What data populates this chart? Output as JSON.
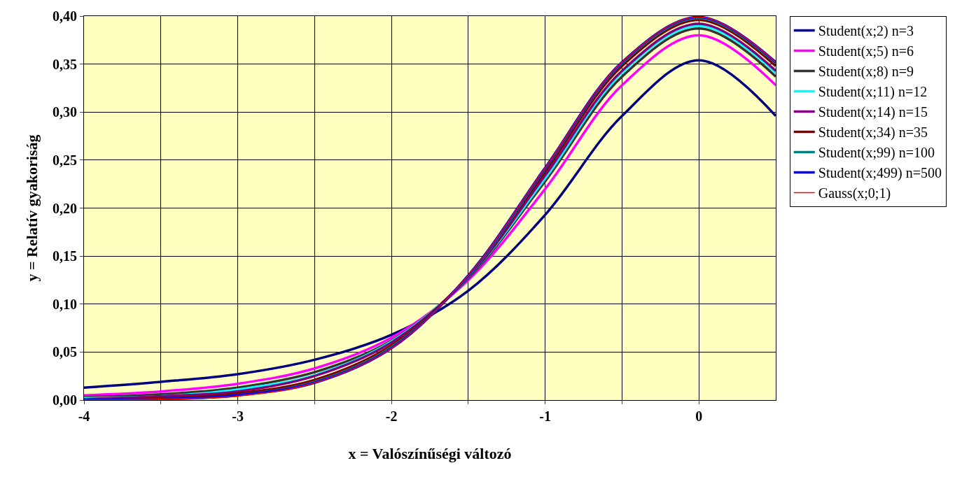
{
  "chart_data": {
    "type": "line",
    "xlabel": "x = Valószínűségi változó",
    "ylabel": "y = Relatív gyakoriság",
    "x": [
      -4,
      -3.5,
      -3,
      -2.5,
      -2,
      -1.5,
      -1,
      -0.5,
      0,
      0.5
    ],
    "series": [
      {
        "name": "Student(x;2) n=3",
        "color": "#000080",
        "values": [
          0.013,
          0.019,
          0.027,
          0.042,
          0.068,
          0.114,
          0.193,
          0.296,
          0.354,
          0.296
        ]
      },
      {
        "name": "Student(x;5) n=6",
        "color": "#ff00ff",
        "values": [
          0.005,
          0.009,
          0.017,
          0.033,
          0.065,
          0.125,
          0.22,
          0.328,
          0.38,
          0.328
        ]
      },
      {
        "name": "Student(x;8) n=9",
        "color": "#333333",
        "values": [
          0.003,
          0.006,
          0.013,
          0.029,
          0.062,
          0.127,
          0.228,
          0.337,
          0.387,
          0.337
        ]
      },
      {
        "name": "Student(x;11) n=12",
        "color": "#00ffff",
        "values": [
          0.002,
          0.004,
          0.011,
          0.026,
          0.061,
          0.128,
          0.231,
          0.341,
          0.39,
          0.341
        ]
      },
      {
        "name": "Student(x;14) n=15",
        "color": "#800080",
        "values": [
          0.001,
          0.004,
          0.009,
          0.025,
          0.06,
          0.128,
          0.234,
          0.343,
          0.392,
          0.343
        ]
      },
      {
        "name": "Student(x;34) n=35",
        "color": "#800000",
        "values": [
          0.0,
          0.002,
          0.007,
          0.021,
          0.057,
          0.129,
          0.238,
          0.348,
          0.396,
          0.348
        ]
      },
      {
        "name": "Student(x;99) n=100",
        "color": "#008080",
        "values": [
          0.0,
          0.001,
          0.005,
          0.019,
          0.055,
          0.129,
          0.241,
          0.351,
          0.398,
          0.351
        ]
      },
      {
        "name": "Student(x;499) n=500",
        "color": "#0000ff",
        "values": [
          0.0,
          0.001,
          0.005,
          0.018,
          0.054,
          0.13,
          0.242,
          0.352,
          0.399,
          0.352
        ]
      },
      {
        "name": "Gauss(x;0;1)",
        "color": "#ff0000",
        "values": [
          0.0,
          0.001,
          0.004,
          0.018,
          0.054,
          0.13,
          0.242,
          0.352,
          0.399,
          0.352
        ]
      }
    ],
    "xlim": [
      -4,
      0.5
    ],
    "xticks": [
      -4,
      {
        "value": -3.5,
        "label": null
      },
      -3,
      {
        "value": -2.5,
        "label": null
      },
      -2,
      {
        "value": -1.5,
        "label": null
      },
      -1,
      {
        "value": -0.5,
        "label": null
      },
      0
    ],
    "ylim": [
      0,
      0.4
    ],
    "yticks": [
      {
        "value": 0,
        "label": "0,00"
      },
      {
        "value": 0.05,
        "label": "0,05"
      },
      {
        "value": 0.1,
        "label": "0,10"
      },
      {
        "value": 0.15,
        "label": "0,15"
      },
      {
        "value": 0.2,
        "label": "0,20"
      },
      {
        "value": 0.25,
        "label": "0,25"
      },
      {
        "value": 0.3,
        "label": "0,30"
      },
      {
        "value": 0.35,
        "label": "0,35"
      },
      {
        "value": 0.4,
        "label": "0,40"
      }
    ],
    "grid": true,
    "legend": "right",
    "marker": "none",
    "line_style": "solid"
  }
}
